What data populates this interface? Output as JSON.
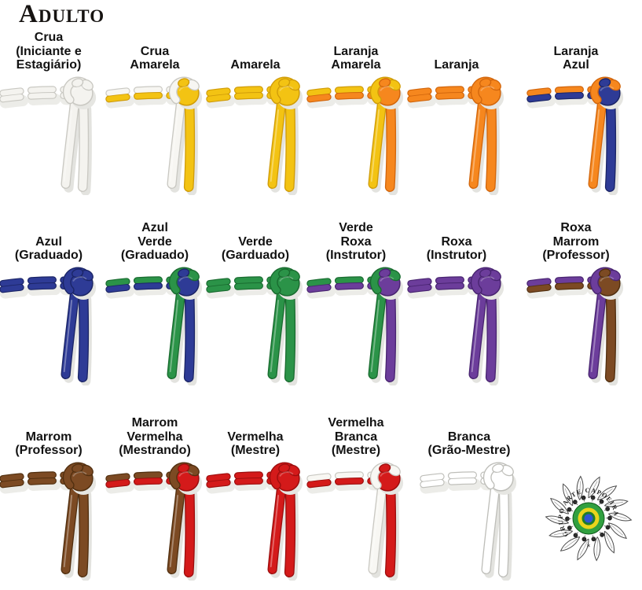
{
  "title": "Adulto",
  "belts": [
    {
      "label_lines": [
        "Crua",
        "(Iniciante e",
        "Estagiário)"
      ],
      "c1": "#F4F3EF",
      "c2": "#F4F3EF",
      "e1": "#C9C8C2",
      "e2": "#C9C8C2"
    },
    {
      "label_lines": [
        "Crua",
        "Amarela"
      ],
      "c1": "#F7F6F2",
      "c2": "#F3C313",
      "e1": "#C9C8C2",
      "e2": "#D09C09"
    },
    {
      "label_lines": [
        "Amarela"
      ],
      "c1": "#F3C313",
      "c2": "#F3C313",
      "e1": "#D09C09",
      "e2": "#D09C09"
    },
    {
      "label_lines": [
        "Laranja",
        "Amarela"
      ],
      "c1": "#F3C313",
      "c2": "#F6871E",
      "e1": "#D09C09",
      "e2": "#D2660C"
    },
    {
      "label_lines": [
        "Laranja"
      ],
      "c1": "#F6871E",
      "c2": "#F6871E",
      "e1": "#D2660C",
      "e2": "#D2660C"
    },
    {
      "label_lines": [
        "Laranja",
        "Azul"
      ],
      "c1": "#F6871E",
      "c2": "#2E3B96",
      "e1": "#D2660C",
      "e2": "#1B2566"
    },
    {
      "label_lines": [
        "Azul",
        "(Graduado)"
      ],
      "c1": "#2E3B96",
      "c2": "#2E3B96",
      "e1": "#1B2566",
      "e2": "#1B2566"
    },
    {
      "label_lines": [
        "Azul",
        "Verde",
        "(Graduado)"
      ],
      "c1": "#2B9348",
      "c2": "#2E3B96",
      "e1": "#196B2F",
      "e2": "#1B2566"
    },
    {
      "label_lines": [
        "Verde",
        "(Garduado)"
      ],
      "c1": "#2B9348",
      "c2": "#2B9348",
      "e1": "#196B2F",
      "e2": "#196B2F"
    },
    {
      "label_lines": [
        "Verde",
        "Roxa",
        "(Instrutor)"
      ],
      "c1": "#2B9348",
      "c2": "#6C3D9B",
      "e1": "#196B2F",
      "e2": "#482470"
    },
    {
      "label_lines": [
        "Roxa",
        "(Instrutor)"
      ],
      "c1": "#6C3D9B",
      "c2": "#6C3D9B",
      "e1": "#482470",
      "e2": "#482470"
    },
    {
      "label_lines": [
        "Roxa",
        "Marrom",
        "(Professor)"
      ],
      "c1": "#6C3D9B",
      "c2": "#7C4A23",
      "e1": "#482470",
      "e2": "#512F0F"
    },
    {
      "label_lines": [
        "Marrom",
        "(Professor)"
      ],
      "c1": "#7C4A23",
      "c2": "#7C4A23",
      "e1": "#512F0F",
      "e2": "#512F0F"
    },
    {
      "label_lines": [
        "Marrom",
        "Vermelha",
        "(Mestrando)"
      ],
      "c1": "#7C4A23",
      "c2": "#D41A1A",
      "e1": "#512F0F",
      "e2": "#9C0E0E"
    },
    {
      "label_lines": [
        "Vermelha",
        "(Mestre)"
      ],
      "c1": "#D41A1A",
      "c2": "#D41A1A",
      "e1": "#9C0E0E",
      "e2": "#9C0E0E"
    },
    {
      "label_lines": [
        "Vermelha",
        "Branca",
        "(Mestre)"
      ],
      "c1": "#F8F7F3",
      "c2": "#D41A1A",
      "e1": "#C9C8C2",
      "e2": "#9C0E0E"
    },
    {
      "label_lines": [
        "Branca",
        "(Grão-Mestre)"
      ],
      "c1": "#FFFFFF",
      "c2": "#FFFFFF",
      "e1": "#BEBEB9",
      "e2": "#BEBEB9"
    }
  ],
  "logo": {
    "ring_text": "GRUPO ARTE CAPOEIRA",
    "leaf_count": 14,
    "colors": {
      "leaf_outline": "#4a4a4a",
      "berry": "#2a2a2a",
      "center_outer_green": "#31A040",
      "center_yellow": "#EAD41C",
      "center_inner_green": "#1E7C2C",
      "center_blue": "#2F55D4",
      "text": "#1d1d1d"
    }
  }
}
